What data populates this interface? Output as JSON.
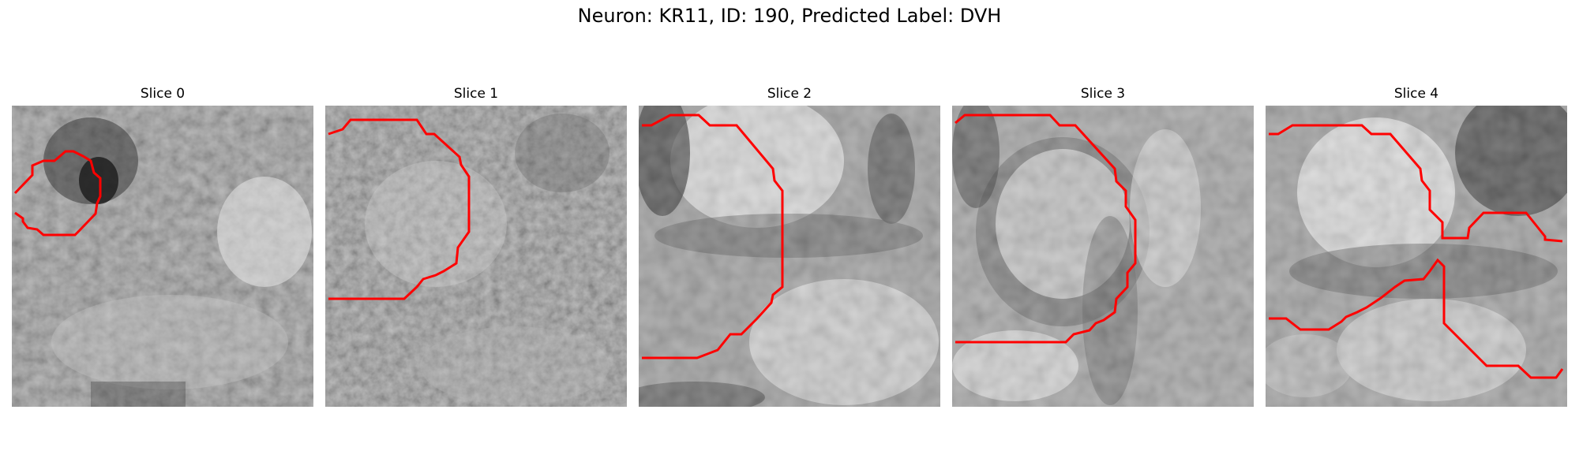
{
  "figure": {
    "suptitle": "Neuron: KR11, ID: 190, Predicted Label: DVH",
    "contour_color": "#ff0000"
  },
  "panels": [
    {
      "title": "Slice 0"
    },
    {
      "title": "Slice 1"
    },
    {
      "title": "Slice 2"
    },
    {
      "title": "Slice 3"
    },
    {
      "title": "Slice 4"
    }
  ]
}
